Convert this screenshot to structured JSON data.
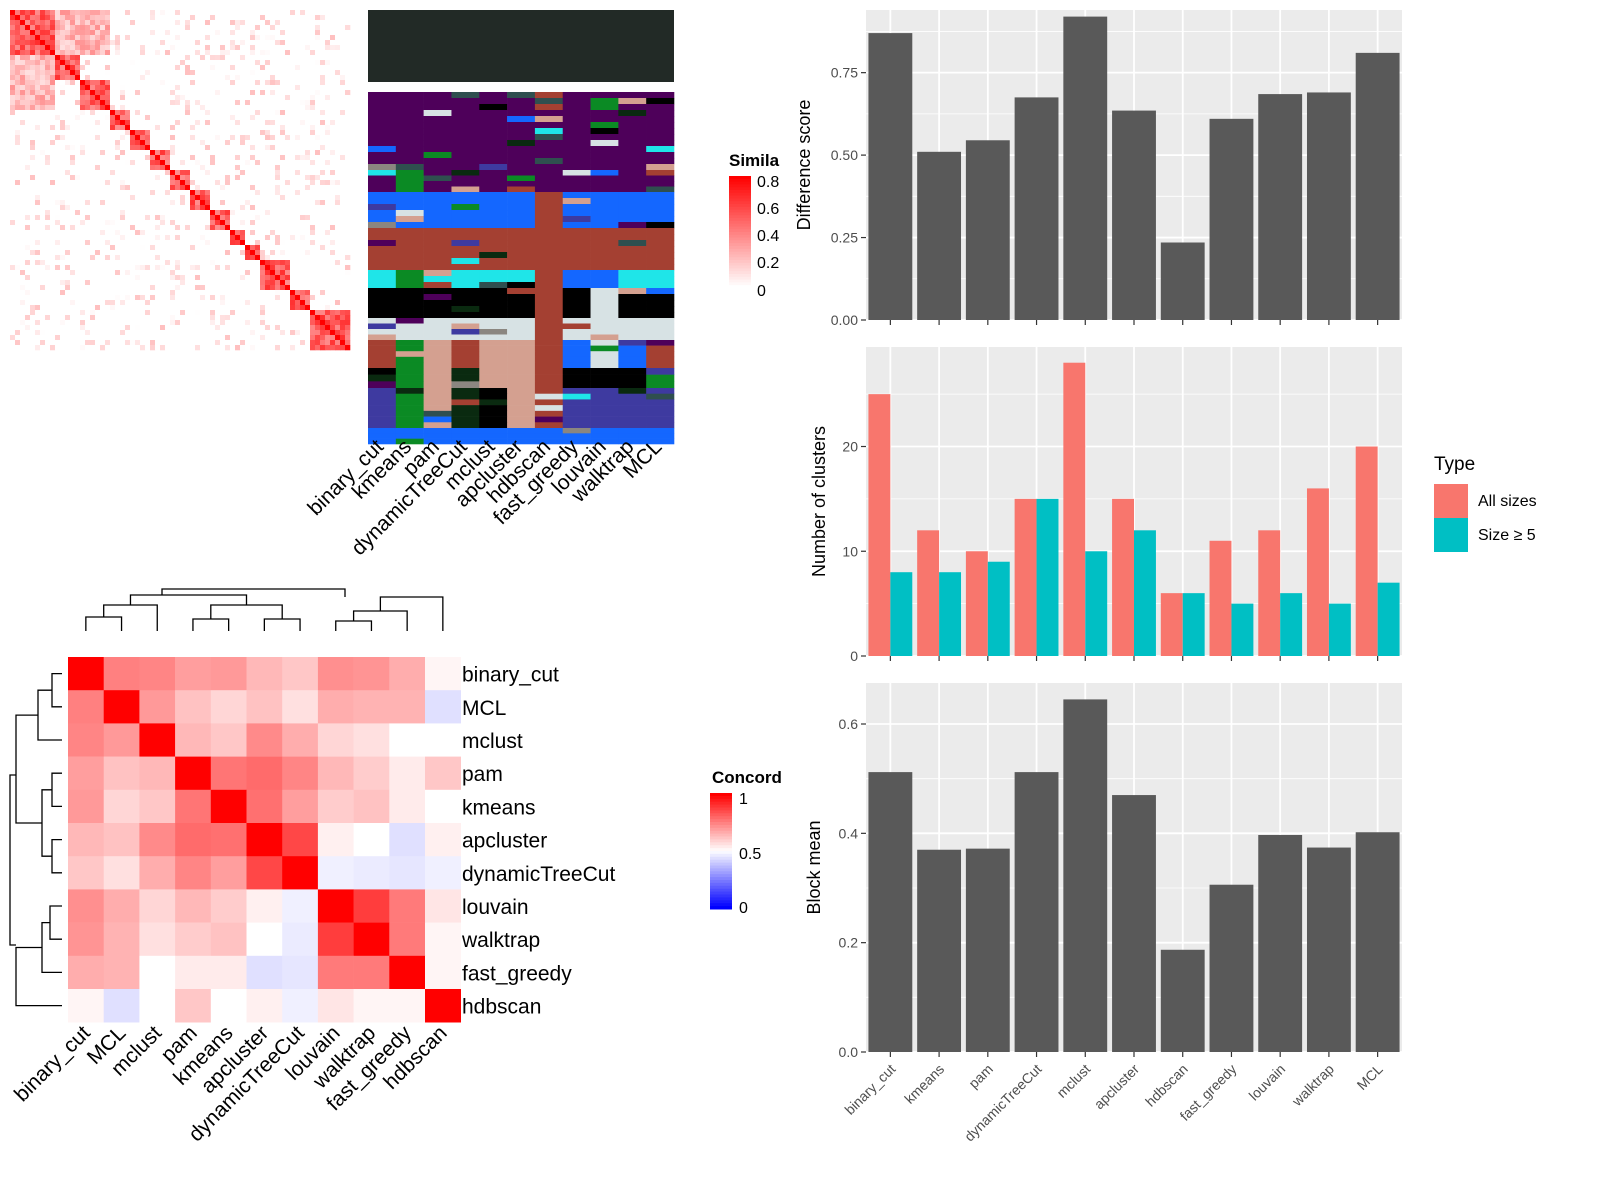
{
  "figure": {
    "similarity_legend": {
      "title": "Simila",
      "ticks": [
        "0.8",
        "0.6",
        "0.4",
        "0.2",
        "0"
      ]
    },
    "concordance_legend": {
      "title": "Concord",
      "ticks": [
        "1",
        "0.5",
        "0"
      ]
    },
    "type_legend": {
      "title": "Type",
      "items": [
        {
          "label": "All sizes",
          "color": "#F8766D"
        },
        {
          "label": "Size ≥ 5",
          "color": "#00BFC4"
        }
      ]
    },
    "colors": {
      "bar": "#595959",
      "panel_bg": "#EBEBEB",
      "grid": "#FFFFFF",
      "heat_high": "#FF0000",
      "heat_low": "#FFFFFF",
      "concord_low": "#0000FF"
    }
  },
  "chart_data": [
    {
      "id": "difference-score",
      "type": "bar",
      "categories": [
        "binary_cut",
        "kmeans",
        "pam",
        "dynamicTreeCut",
        "mclust",
        "apcluster",
        "hdbscan",
        "fast_greedy",
        "louvain",
        "walktrap",
        "MCL"
      ],
      "values": [
        0.87,
        0.51,
        0.545,
        0.675,
        0.92,
        0.635,
        0.235,
        0.61,
        0.685,
        0.69,
        0.81
      ],
      "ylabel": "Difference score",
      "ylim": [
        0,
        0.94
      ],
      "yticks": [
        "0.00",
        "0.25",
        "0.50",
        "0.75"
      ],
      "grid": true
    },
    {
      "id": "number-of-clusters",
      "type": "bar",
      "categories": [
        "binary_cut",
        "kmeans",
        "pam",
        "dynamicTreeCut",
        "mclust",
        "apcluster",
        "hdbscan",
        "fast_greedy",
        "louvain",
        "walktrap",
        "MCL"
      ],
      "series": [
        {
          "name": "All sizes",
          "values": [
            25,
            12,
            10,
            15,
            28,
            15,
            6,
            11,
            12,
            16,
            20
          ]
        },
        {
          "name": "Size ≥ 5",
          "values": [
            8,
            8,
            9,
            15,
            10,
            12,
            6,
            5,
            6,
            5,
            7
          ]
        }
      ],
      "ylabel": "Number of clusters",
      "ylim": [
        0,
        29.5
      ],
      "yticks": [
        "0",
        "10",
        "20"
      ],
      "legend": "right",
      "grid": true
    },
    {
      "id": "block-mean",
      "type": "bar",
      "categories": [
        "binary_cut",
        "kmeans",
        "pam",
        "dynamicTreeCut",
        "mclust",
        "apcluster",
        "hdbscan",
        "fast_greedy",
        "louvain",
        "walktrap",
        "MCL"
      ],
      "values": [
        0.512,
        0.37,
        0.372,
        0.512,
        0.645,
        0.47,
        0.187,
        0.306,
        0.397,
        0.374,
        0.402
      ],
      "ylabel": "Block mean",
      "ylim": [
        0,
        0.675
      ],
      "yticks": [
        "0.0",
        "0.2",
        "0.4",
        "0.6"
      ],
      "grid": true
    },
    {
      "id": "concordance-heatmap",
      "type": "heatmap",
      "rows": [
        "binary_cut",
        "MCL",
        "mclust",
        "pam",
        "kmeans",
        "apcluster",
        "dynamicTreeCut",
        "louvain",
        "walktrap",
        "fast_greedy",
        "hdbscan"
      ],
      "columns": [
        "binary_cut",
        "MCL",
        "mclust",
        "pam",
        "kmeans",
        "apcluster",
        "dynamicTreeCut",
        "louvain",
        "walktrap",
        "fast_greedy",
        "hdbscan"
      ],
      "values": [
        [
          1.0,
          0.75,
          0.74,
          0.69,
          0.7,
          0.64,
          0.61,
          0.72,
          0.71,
          0.66,
          0.52
        ],
        [
          0.75,
          1.0,
          0.7,
          0.62,
          0.58,
          0.62,
          0.56,
          0.66,
          0.65,
          0.65,
          0.44
        ],
        [
          0.74,
          0.7,
          1.0,
          0.64,
          0.61,
          0.73,
          0.66,
          0.58,
          0.56,
          0.5,
          0.5
        ],
        [
          0.69,
          0.62,
          0.64,
          1.0,
          0.77,
          0.79,
          0.74,
          0.64,
          0.6,
          0.54,
          0.61
        ],
        [
          0.7,
          0.58,
          0.61,
          0.77,
          1.0,
          0.78,
          0.69,
          0.6,
          0.62,
          0.54,
          0.5
        ],
        [
          0.64,
          0.62,
          0.73,
          0.79,
          0.78,
          1.0,
          0.86,
          0.53,
          0.5,
          0.44,
          0.53
        ],
        [
          0.61,
          0.56,
          0.66,
          0.74,
          0.69,
          0.86,
          1.0,
          0.47,
          0.46,
          0.45,
          0.47
        ],
        [
          0.72,
          0.66,
          0.58,
          0.64,
          0.6,
          0.53,
          0.47,
          1.0,
          0.88,
          0.76,
          0.55
        ],
        [
          0.71,
          0.65,
          0.56,
          0.6,
          0.62,
          0.5,
          0.46,
          0.88,
          1.0,
          0.76,
          0.52
        ],
        [
          0.66,
          0.65,
          0.5,
          0.54,
          0.54,
          0.44,
          0.45,
          0.76,
          0.76,
          1.0,
          0.52
        ],
        [
          0.52,
          0.44,
          0.5,
          0.61,
          0.5,
          0.53,
          0.47,
          0.55,
          0.52,
          0.52,
          1.0
        ]
      ],
      "scale": [
        0,
        1
      ]
    },
    {
      "id": "similarity-heatmap",
      "type": "heatmap",
      "scale": [
        0,
        0.8
      ]
    },
    {
      "id": "cluster-membership",
      "type": "heatmap",
      "columns": [
        "binary_cut",
        "kmeans",
        "pam",
        "dynamicTreeCut",
        "mclust",
        "apcluster",
        "hdbscan",
        "fast_greedy",
        "louvain",
        "walktrap",
        "MCL"
      ]
    }
  ]
}
